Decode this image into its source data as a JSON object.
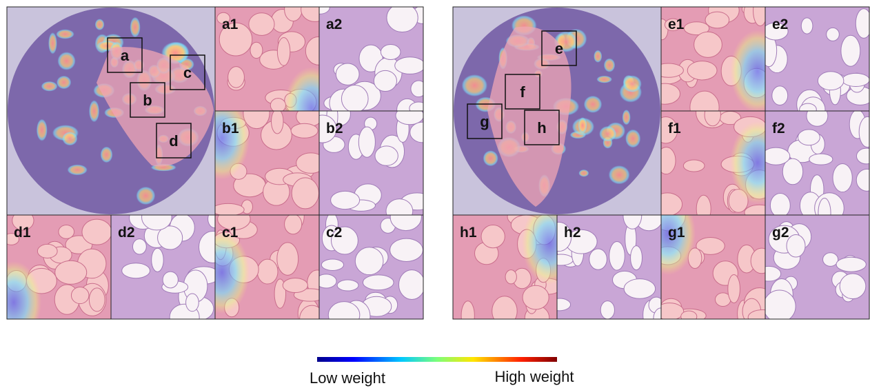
{
  "left": {
    "boxes": [
      "a",
      "b",
      "c",
      "d"
    ],
    "tiles": [
      "a1",
      "a2",
      "b1",
      "b2",
      "d1",
      "d2",
      "c1",
      "c2"
    ]
  },
  "right": {
    "boxes": [
      "e",
      "f",
      "g",
      "h"
    ],
    "tiles": [
      "e1",
      "e2",
      "f1",
      "f2",
      "h1",
      "h2",
      "g1",
      "g2"
    ]
  },
  "colorbar": {
    "low": "Low weight",
    "high": "High weight"
  }
}
